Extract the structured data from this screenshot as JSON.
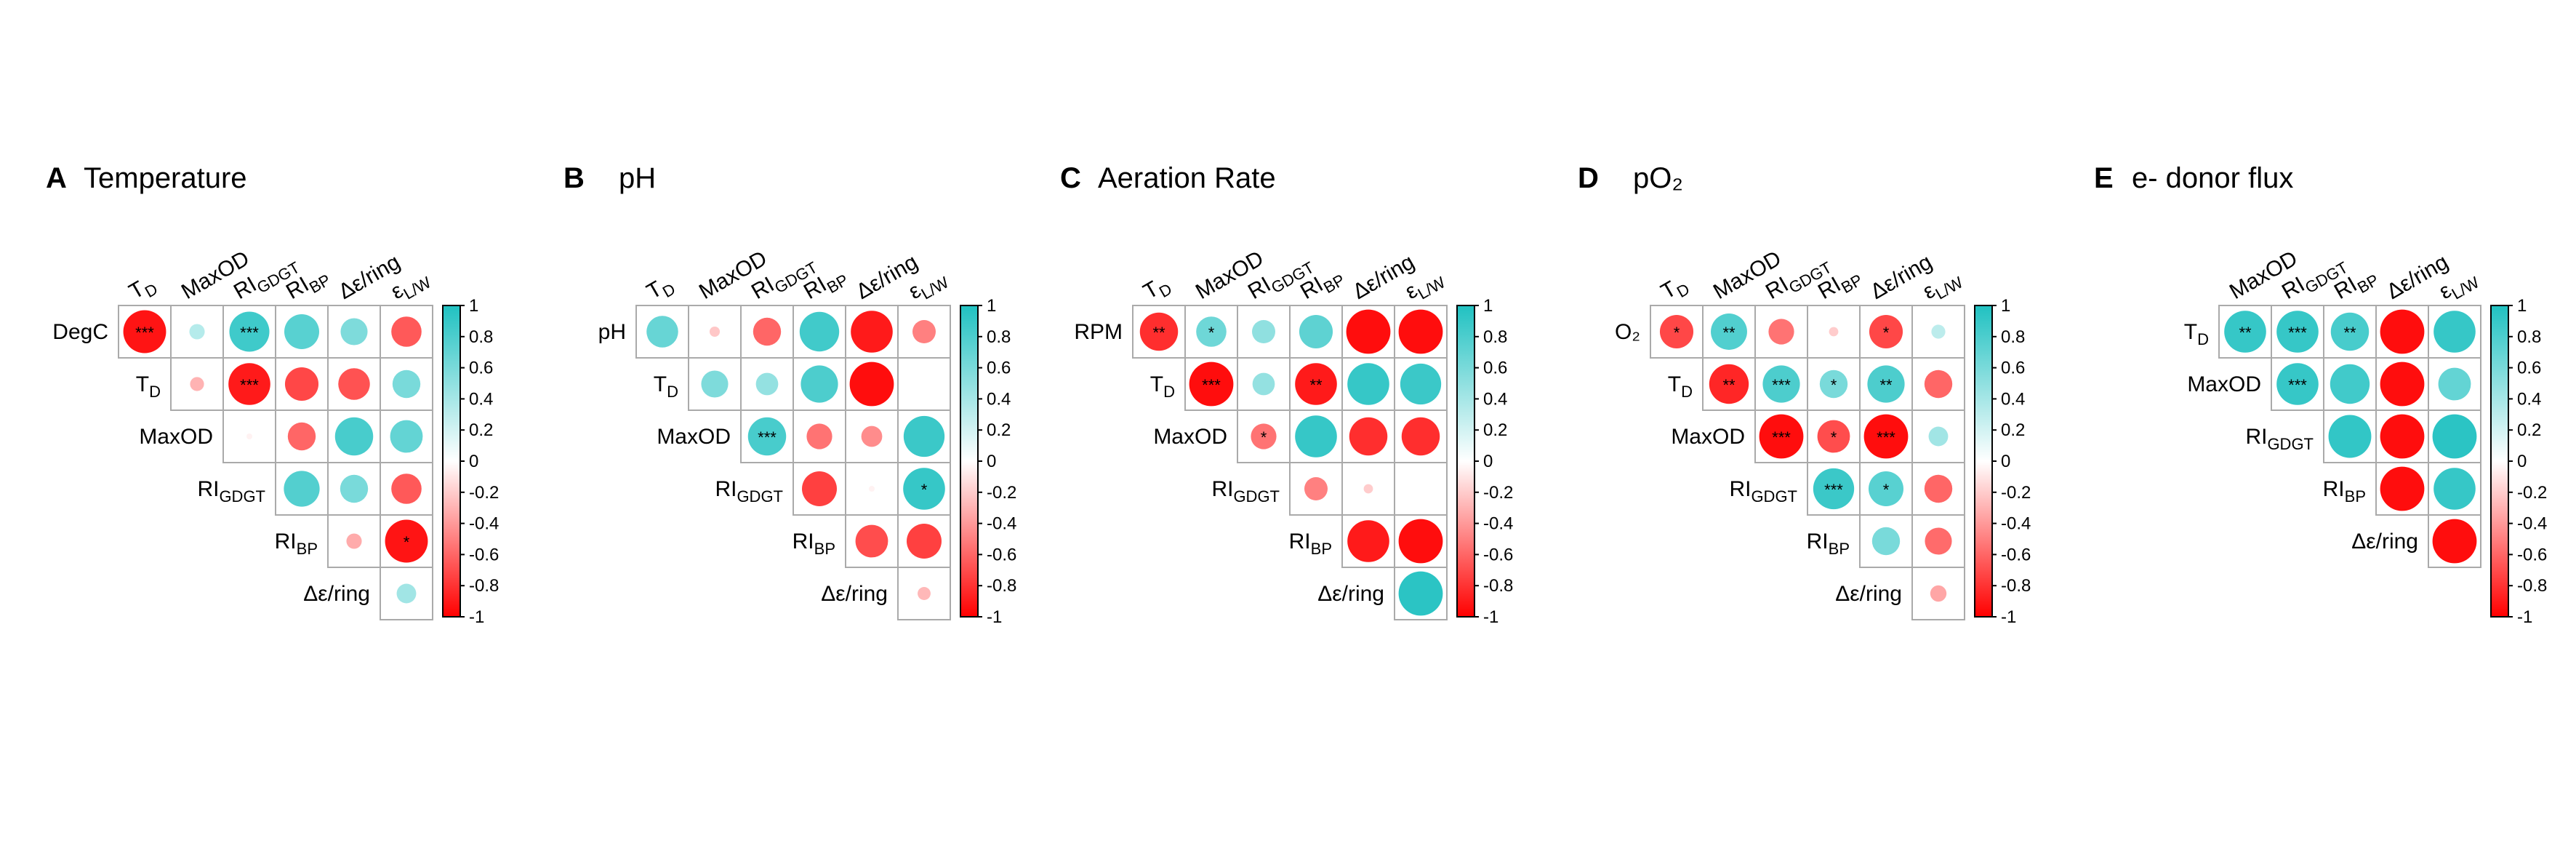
{
  "colors": {
    "positive": "#20c1c1",
    "negative": "#ff0000",
    "neutral": "#ffffff",
    "grid": "#aaaaaa"
  },
  "colorbar": {
    "ticks": [
      "1",
      "0.8",
      "0.6",
      "0.4",
      "0.2",
      "0",
      "-0.2",
      "-0.4",
      "-0.6",
      "-0.8",
      "-1"
    ]
  },
  "chart_data": [
    {
      "type": "heatmap",
      "panel_letter": "A",
      "title": "Temperature",
      "columns": [
        "T_D",
        "MaxOD",
        "RI_GDGT",
        "RI_BP",
        "Δε/ring",
        "ε_L/W"
      ],
      "rows": [
        "DegC",
        "T_D",
        "MaxOD",
        "RI_GDGT",
        "RI_BP",
        "Δε/ring"
      ],
      "cells": [
        {
          "r": 0,
          "c": 0,
          "v": -0.92,
          "sig": "***"
        },
        {
          "r": 0,
          "c": 1,
          "v": 0.33,
          "sig": ""
        },
        {
          "r": 0,
          "c": 2,
          "v": 0.86,
          "sig": "***"
        },
        {
          "r": 0,
          "c": 3,
          "v": 0.75,
          "sig": ""
        },
        {
          "r": 0,
          "c": 4,
          "v": 0.58,
          "sig": ""
        },
        {
          "r": 0,
          "c": 5,
          "v": -0.65,
          "sig": ""
        },
        {
          "r": 1,
          "c": 1,
          "v": -0.3,
          "sig": ""
        },
        {
          "r": 1,
          "c": 2,
          "v": -0.9,
          "sig": "***"
        },
        {
          "r": 1,
          "c": 3,
          "v": -0.72,
          "sig": ""
        },
        {
          "r": 1,
          "c": 4,
          "v": -0.68,
          "sig": ""
        },
        {
          "r": 1,
          "c": 5,
          "v": 0.6,
          "sig": ""
        },
        {
          "r": 2,
          "c": 2,
          "v": -0.05,
          "sig": ""
        },
        {
          "r": 2,
          "c": 3,
          "v": -0.6,
          "sig": ""
        },
        {
          "r": 2,
          "c": 4,
          "v": 0.82,
          "sig": ""
        },
        {
          "r": 2,
          "c": 5,
          "v": 0.7,
          "sig": ""
        },
        {
          "r": 3,
          "c": 3,
          "v": 0.77,
          "sig": ""
        },
        {
          "r": 3,
          "c": 4,
          "v": 0.6,
          "sig": ""
        },
        {
          "r": 3,
          "c": 5,
          "v": -0.65,
          "sig": ""
        },
        {
          "r": 4,
          "c": 4,
          "v": -0.33,
          "sig": ""
        },
        {
          "r": 4,
          "c": 5,
          "v": -0.92,
          "sig": "*"
        },
        {
          "r": 5,
          "c": 5,
          "v": 0.42,
          "sig": ""
        }
      ]
    },
    {
      "type": "heatmap",
      "panel_letter": "B",
      "title": "pH",
      "columns": [
        "T_D",
        "MaxOD",
        "RI_GDGT",
        "RI_BP",
        "Δε/ring",
        "ε_L/W"
      ],
      "rows": [
        "pH",
        "T_D",
        "MaxOD",
        "RI_GDGT",
        "RI_BP",
        "Δε/ring"
      ],
      "cells": [
        {
          "r": 0,
          "c": 0,
          "v": 0.68,
          "sig": ""
        },
        {
          "r": 0,
          "c": 1,
          "v": -0.22,
          "sig": ""
        },
        {
          "r": 0,
          "c": 2,
          "v": -0.6,
          "sig": ""
        },
        {
          "r": 0,
          "c": 3,
          "v": 0.85,
          "sig": ""
        },
        {
          "r": 0,
          "c": 4,
          "v": -0.9,
          "sig": ""
        },
        {
          "r": 0,
          "c": 5,
          "v": -0.5,
          "sig": ""
        },
        {
          "r": 1,
          "c": 1,
          "v": 0.58,
          "sig": ""
        },
        {
          "r": 1,
          "c": 2,
          "v": 0.48,
          "sig": ""
        },
        {
          "r": 1,
          "c": 3,
          "v": 0.8,
          "sig": ""
        },
        {
          "r": 1,
          "c": 4,
          "v": -0.95,
          "sig": ""
        },
        {
          "r": 2,
          "c": 2,
          "v": 0.82,
          "sig": "***"
        },
        {
          "r": 2,
          "c": 3,
          "v": -0.55,
          "sig": ""
        },
        {
          "r": 2,
          "c": 4,
          "v": -0.45,
          "sig": ""
        },
        {
          "r": 2,
          "c": 5,
          "v": 0.88,
          "sig": ""
        },
        {
          "r": 3,
          "c": 3,
          "v": -0.75,
          "sig": ""
        },
        {
          "r": 3,
          "c": 4,
          "v": -0.05,
          "sig": ""
        },
        {
          "r": 3,
          "c": 5,
          "v": 0.9,
          "sig": "*"
        },
        {
          "r": 4,
          "c": 4,
          "v": -0.7,
          "sig": ""
        },
        {
          "r": 4,
          "c": 5,
          "v": -0.75,
          "sig": ""
        },
        {
          "r": 5,
          "c": 5,
          "v": -0.28,
          "sig": ""
        }
      ]
    },
    {
      "type": "heatmap",
      "panel_letter": "C",
      "title": "Aeration Rate",
      "columns": [
        "T_D",
        "MaxOD",
        "RI_GDGT",
        "RI_BP",
        "Δε/ring",
        "ε_L/W"
      ],
      "rows": [
        "RPM",
        "T_D",
        "MaxOD",
        "RI_GDGT",
        "RI_BP",
        "Δε/ring"
      ],
      "cells": [
        {
          "r": 0,
          "c": 0,
          "v": -0.82,
          "sig": "**"
        },
        {
          "r": 0,
          "c": 1,
          "v": 0.65,
          "sig": "*"
        },
        {
          "r": 0,
          "c": 2,
          "v": 0.5,
          "sig": ""
        },
        {
          "r": 0,
          "c": 3,
          "v": 0.72,
          "sig": ""
        },
        {
          "r": 0,
          "c": 4,
          "v": -0.95,
          "sig": ""
        },
        {
          "r": 0,
          "c": 5,
          "v": -0.95,
          "sig": ""
        },
        {
          "r": 1,
          "c": 1,
          "v": -0.95,
          "sig": "***"
        },
        {
          "r": 1,
          "c": 2,
          "v": 0.48,
          "sig": ""
        },
        {
          "r": 1,
          "c": 3,
          "v": -0.9,
          "sig": "**"
        },
        {
          "r": 1,
          "c": 4,
          "v": 0.9,
          "sig": ""
        },
        {
          "r": 1,
          "c": 5,
          "v": 0.88,
          "sig": ""
        },
        {
          "r": 2,
          "c": 2,
          "v": -0.55,
          "sig": "*"
        },
        {
          "r": 2,
          "c": 3,
          "v": 0.9,
          "sig": ""
        },
        {
          "r": 2,
          "c": 4,
          "v": -0.82,
          "sig": ""
        },
        {
          "r": 2,
          "c": 5,
          "v": -0.82,
          "sig": ""
        },
        {
          "r": 3,
          "c": 3,
          "v": -0.5,
          "sig": ""
        },
        {
          "r": 3,
          "c": 4,
          "v": -0.2,
          "sig": ""
        },
        {
          "r": 4,
          "c": 4,
          "v": -0.9,
          "sig": ""
        },
        {
          "r": 4,
          "c": 5,
          "v": -0.95,
          "sig": ""
        },
        {
          "r": 5,
          "c": 5,
          "v": 0.95,
          "sig": ""
        }
      ]
    },
    {
      "type": "heatmap",
      "panel_letter": "D",
      "title": "pO₂",
      "columns": [
        "T_D",
        "MaxOD",
        "RI_GDGT",
        "RI_BP",
        "Δε/ring",
        "ε_L/W"
      ],
      "rows": [
        "O₂",
        "T_D",
        "MaxOD",
        "RI_GDGT",
        "RI_BP",
        "Δε/ring"
      ],
      "cells": [
        {
          "r": 0,
          "c": 0,
          "v": -0.72,
          "sig": "*"
        },
        {
          "r": 0,
          "c": 1,
          "v": 0.78,
          "sig": "**"
        },
        {
          "r": 0,
          "c": 2,
          "v": -0.55,
          "sig": ""
        },
        {
          "r": 0,
          "c": 3,
          "v": -0.2,
          "sig": ""
        },
        {
          "r": 0,
          "c": 4,
          "v": -0.72,
          "sig": "*"
        },
        {
          "r": 0,
          "c": 5,
          "v": 0.3,
          "sig": ""
        },
        {
          "r": 1,
          "c": 1,
          "v": -0.85,
          "sig": "**"
        },
        {
          "r": 1,
          "c": 2,
          "v": 0.8,
          "sig": "***"
        },
        {
          "r": 1,
          "c": 3,
          "v": 0.6,
          "sig": "*"
        },
        {
          "r": 1,
          "c": 4,
          "v": 0.8,
          "sig": "**"
        },
        {
          "r": 1,
          "c": 5,
          "v": -0.6,
          "sig": ""
        },
        {
          "r": 2,
          "c": 2,
          "v": -0.95,
          "sig": "***"
        },
        {
          "r": 2,
          "c": 3,
          "v": -0.7,
          "sig": "*"
        },
        {
          "r": 2,
          "c": 4,
          "v": -0.95,
          "sig": "***"
        },
        {
          "r": 2,
          "c": 5,
          "v": 0.42,
          "sig": ""
        },
        {
          "r": 3,
          "c": 3,
          "v": 0.88,
          "sig": "***"
        },
        {
          "r": 3,
          "c": 4,
          "v": 0.75,
          "sig": "*"
        },
        {
          "r": 3,
          "c": 5,
          "v": -0.6,
          "sig": ""
        },
        {
          "r": 4,
          "c": 4,
          "v": 0.6,
          "sig": ""
        },
        {
          "r": 4,
          "c": 5,
          "v": -0.58,
          "sig": ""
        },
        {
          "r": 5,
          "c": 5,
          "v": -0.35,
          "sig": ""
        }
      ]
    },
    {
      "type": "heatmap",
      "panel_letter": "E",
      "title": "e- donor flux",
      "columns": [
        "MaxOD",
        "RI_GDGT",
        "RI_BP",
        "Δε/ring",
        "ε_L/W"
      ],
      "rows": [
        "T_D",
        "MaxOD",
        "RI_GDGT",
        "RI_BP",
        "Δε/ring"
      ],
      "cells": [
        {
          "r": 0,
          "c": 0,
          "v": 0.9,
          "sig": "**"
        },
        {
          "r": 0,
          "c": 1,
          "v": 0.9,
          "sig": "***"
        },
        {
          "r": 0,
          "c": 2,
          "v": 0.82,
          "sig": "**"
        },
        {
          "r": 0,
          "c": 3,
          "v": -0.95,
          "sig": ""
        },
        {
          "r": 0,
          "c": 4,
          "v": 0.9,
          "sig": ""
        },
        {
          "r": 1,
          "c": 1,
          "v": 0.9,
          "sig": "***"
        },
        {
          "r": 1,
          "c": 2,
          "v": 0.85,
          "sig": ""
        },
        {
          "r": 1,
          "c": 3,
          "v": -0.95,
          "sig": ""
        },
        {
          "r": 1,
          "c": 4,
          "v": 0.7,
          "sig": ""
        },
        {
          "r": 2,
          "c": 2,
          "v": 0.92,
          "sig": ""
        },
        {
          "r": 2,
          "c": 3,
          "v": -0.95,
          "sig": ""
        },
        {
          "r": 2,
          "c": 4,
          "v": 0.95,
          "sig": ""
        },
        {
          "r": 3,
          "c": 3,
          "v": -0.95,
          "sig": ""
        },
        {
          "r": 3,
          "c": 4,
          "v": 0.9,
          "sig": ""
        },
        {
          "r": 4,
          "c": 4,
          "v": -0.95,
          "sig": ""
        }
      ]
    }
  ]
}
